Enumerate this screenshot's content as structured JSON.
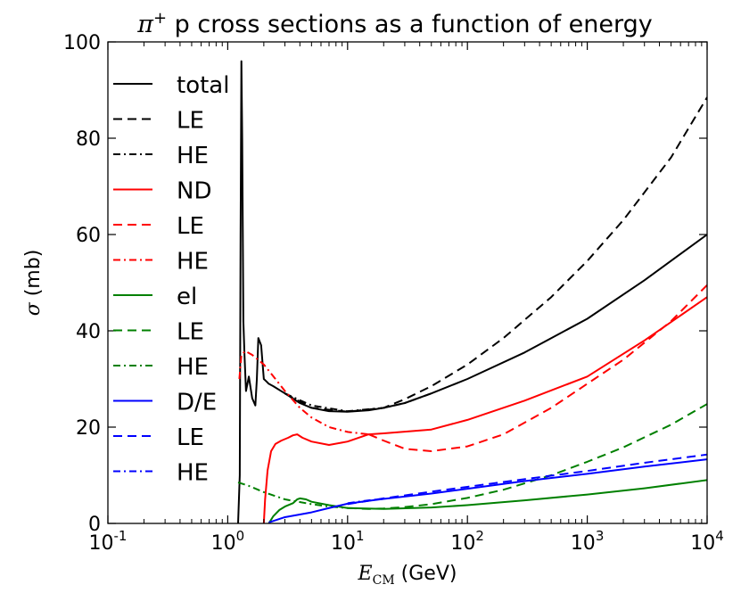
{
  "chart_data": {
    "type": "line",
    "title_symbol": "π",
    "title_sup": "+",
    "title_rest": " p cross sections as a function of energy",
    "xlabel_symbol": "E",
    "xlabel_sub": "CM",
    "xlabel_unit": " (GeV)",
    "ylabel_symbol": "σ",
    "ylabel_unit": " (mb)",
    "xscale": "log",
    "xlim": [
      0.1,
      10000
    ],
    "ylim": [
      0,
      100
    ],
    "xticks": [
      {
        "value": 0.1,
        "base": "10",
        "exp": "-1"
      },
      {
        "value": 1,
        "base": "10",
        "exp": "0"
      },
      {
        "value": 10,
        "base": "10",
        "exp": "1"
      },
      {
        "value": 100,
        "base": "10",
        "exp": "2"
      },
      {
        "value": 1000,
        "base": "10",
        "exp": "3"
      },
      {
        "value": 10000,
        "base": "10",
        "exp": "4"
      }
    ],
    "yticks": [
      {
        "value": 0,
        "label": "0"
      },
      {
        "value": 20,
        "label": "20"
      },
      {
        "value": 40,
        "label": "40"
      },
      {
        "value": 60,
        "label": "60"
      },
      {
        "value": 80,
        "label": "80"
      },
      {
        "value": 100,
        "label": "100"
      }
    ],
    "legend_position": "upper-left",
    "series": [
      {
        "name": "total",
        "color": "#000000",
        "style": "solid",
        "x": [
          1.22,
          1.26,
          1.28,
          1.3,
          1.32,
          1.35,
          1.38,
          1.42,
          1.5,
          1.6,
          1.7,
          1.75,
          1.8,
          1.9,
          2.0,
          2.1,
          2.2,
          2.4,
          3,
          4,
          5,
          7,
          10,
          15,
          20,
          30,
          50,
          100,
          300,
          1000,
          3000,
          10000
        ],
        "y": [
          0,
          10,
          60,
          96,
          80,
          42,
          35,
          27.5,
          30.5,
          26,
          24.5,
          30,
          38.5,
          37,
          30,
          29.5,
          29,
          28.5,
          27,
          25,
          24,
          23.3,
          23.2,
          23.5,
          24,
          25,
          27,
          30,
          35.5,
          42.5,
          50.5,
          60
        ]
      },
      {
        "name": "LE",
        "color": "#000000",
        "style": "dashed",
        "x": [
          3,
          5,
          10,
          20,
          30,
          50,
          100,
          200,
          500,
          1000,
          2000,
          5000,
          10000
        ],
        "y": [
          27,
          24,
          23.2,
          24,
          25.8,
          28.5,
          33,
          38.5,
          47,
          54.5,
          63,
          76,
          88.5
        ]
      },
      {
        "name": "HE",
        "color": "#000000",
        "style": "dashdot",
        "x": [
          3,
          5,
          10,
          20,
          30,
          50
        ],
        "y": [
          27,
          24.5,
          23.3,
          24,
          25,
          27
        ]
      },
      {
        "name": "ND",
        "color": "#ff0000",
        "style": "solid",
        "x": [
          2.0,
          2.05,
          2.15,
          2.3,
          2.5,
          2.8,
          3.2,
          3.5,
          3.8,
          4.2,
          5,
          7,
          10,
          15,
          20,
          50,
          100,
          300,
          1000,
          3000,
          10000
        ],
        "y": [
          0,
          5,
          11,
          15,
          16.5,
          17.2,
          17.8,
          18.3,
          18.5,
          17.8,
          17,
          16.3,
          17,
          18.5,
          18.7,
          19.5,
          21.5,
          25.5,
          30.5,
          38,
          47
        ]
      },
      {
        "name": "LE",
        "color": "#ff0000",
        "style": "dashed",
        "x": [
          15,
          20,
          30,
          50,
          100,
          200,
          500,
          1000,
          2000,
          5000,
          10000
        ],
        "y": [
          18.5,
          17.2,
          15.5,
          15,
          16,
          18.5,
          24,
          29,
          34,
          42,
          49.5
        ]
      },
      {
        "name": "HE",
        "color": "#ff0000",
        "style": "dashdot",
        "x": [
          1.25,
          1.3,
          1.4,
          1.6,
          2.0,
          2.5,
          3,
          4,
          5,
          7,
          10,
          15
        ],
        "y": [
          30,
          35,
          35.8,
          35,
          33,
          30,
          27.5,
          24,
          22,
          20,
          19,
          18.5
        ]
      },
      {
        "name": "el",
        "color": "#008000",
        "style": "solid",
        "x": [
          2.2,
          2.4,
          2.7,
          3,
          3.5,
          3.8,
          4,
          4.5,
          5,
          7,
          10,
          20,
          50,
          100,
          300,
          1000,
          3000,
          10000
        ],
        "y": [
          0,
          1.5,
          2.8,
          3.5,
          4.2,
          5,
          5.2,
          5,
          4.5,
          3.8,
          3.2,
          3,
          3.3,
          3.8,
          4.8,
          6,
          7.3,
          9
        ]
      },
      {
        "name": "LE",
        "color": "#008000",
        "style": "dashed",
        "x": [
          10,
          15,
          20,
          30,
          50,
          100,
          200,
          500,
          1000,
          2000,
          5000,
          10000
        ],
        "y": [
          3.2,
          3,
          3.1,
          3.4,
          4,
          5.3,
          7,
          10,
          12.8,
          15.8,
          20.5,
          24.8
        ]
      },
      {
        "name": "HE",
        "color": "#008000",
        "style": "dashdot",
        "x": [
          1.22,
          1.3,
          1.5,
          2,
          3,
          5,
          7,
          10
        ],
        "y": [
          8.5,
          8.3,
          7.8,
          6.5,
          5,
          4,
          3.5,
          3.2
        ]
      },
      {
        "name": "D/E",
        "color": "#0000ff",
        "style": "solid",
        "x": [
          2.2,
          3,
          5,
          7,
          10,
          15,
          20,
          50,
          100,
          300,
          1000,
          3000,
          10000
        ],
        "y": [
          0.2,
          1.3,
          2.3,
          3.2,
          4.1,
          4.7,
          5.1,
          6.2,
          7.2,
          8.8,
          10.3,
          11.8,
          13.3
        ]
      },
      {
        "name": "LE",
        "color": "#0000ff",
        "style": "dashed",
        "x": [
          10,
          20,
          50,
          100,
          300,
          1000,
          3000,
          10000
        ],
        "y": [
          4,
          5.2,
          6.6,
          7.6,
          9.2,
          10.9,
          12.6,
          14.3
        ]
      },
      {
        "name": "HE",
        "color": "#0000ff",
        "style": "dashdot",
        "x": [
          10,
          15,
          20
        ],
        "y": [
          4.2,
          4.8,
          5.1
        ]
      }
    ]
  }
}
